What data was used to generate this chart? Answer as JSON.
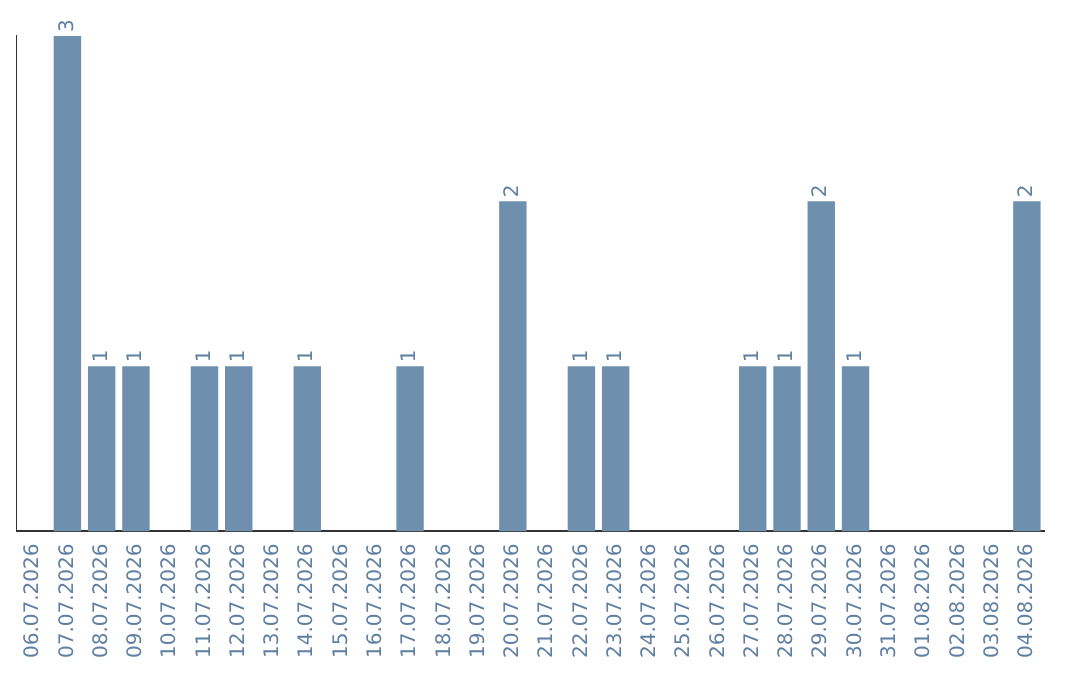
{
  "chart_data": {
    "type": "bar",
    "categories": [
      "06.07.2026",
      "07.07.2026",
      "08.07.2026",
      "09.07.2026",
      "10.07.2026",
      "11.07.2026",
      "12.07.2026",
      "13.07.2026",
      "14.07.2026",
      "15.07.2026",
      "16.07.2026",
      "17.07.2026",
      "18.07.2026",
      "19.07.2026",
      "20.07.2026",
      "21.07.2026",
      "22.07.2026",
      "23.07.2026",
      "24.07.2026",
      "25.07.2026",
      "26.07.2026",
      "27.07.2026",
      "28.07.2026",
      "29.07.2026",
      "30.07.2026",
      "31.07.2026",
      "01.08.2026",
      "02.08.2026",
      "03.08.2026",
      "04.08.2026"
    ],
    "values": [
      0,
      3,
      1,
      1,
      0,
      1,
      1,
      0,
      1,
      0,
      0,
      1,
      0,
      0,
      2,
      0,
      1,
      1,
      0,
      0,
      0,
      1,
      1,
      2,
      1,
      0,
      0,
      0,
      0,
      2
    ],
    "value_labels": [
      null,
      "3",
      "1",
      "1",
      null,
      "1",
      "1",
      null,
      "1",
      null,
      null,
      "1",
      null,
      null,
      "2",
      null,
      "1",
      "1",
      null,
      null,
      null,
      "1",
      "1",
      "2",
      "1",
      null,
      null,
      null,
      null,
      "2"
    ],
    "color": "#6f8fae",
    "tick_labels": "x",
    "grid": false,
    "legend": false
  }
}
